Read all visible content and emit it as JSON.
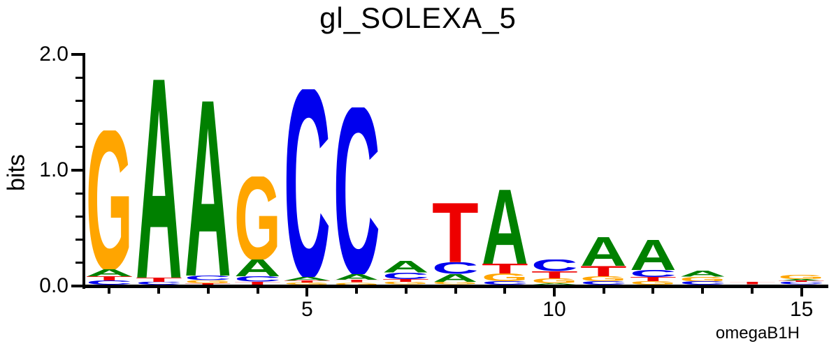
{
  "chart_data": {
    "type": "sequence-logo",
    "title": "gl_SOLEXA_5",
    "ylabel": "bits",
    "attribution": "omegaB1H",
    "ylim": [
      0.0,
      2.0
    ],
    "yticks": [
      {
        "value": 0.0,
        "label": "0.0"
      },
      {
        "value": 1.0,
        "label": "1.0"
      },
      {
        "value": 2.0,
        "label": "2.0"
      }
    ],
    "y_minor_tick_interval": 0.2,
    "x_major_ticks": [
      {
        "position": 5,
        "label": "5"
      },
      {
        "position": 10,
        "label": "10"
      },
      {
        "position": 15,
        "label": "15"
      }
    ],
    "num_positions": 15,
    "colors": {
      "A": "#008000",
      "C": "#0000EE",
      "G": "#FFA500",
      "T": "#EE0000"
    },
    "positions": [
      {
        "pos": 1,
        "stack": [
          {
            "base": "G",
            "bits": 1.2
          },
          {
            "base": "A",
            "bits": 0.06
          },
          {
            "base": "T",
            "bits": 0.035
          },
          {
            "base": "C",
            "bits": 0.035
          }
        ]
      },
      {
        "pos": 2,
        "stack": [
          {
            "base": "A",
            "bits": 1.71
          },
          {
            "base": "T",
            "bits": 0.035
          },
          {
            "base": "C",
            "bits": 0.025
          }
        ]
      },
      {
        "pos": 3,
        "stack": [
          {
            "base": "A",
            "bits": 1.51
          },
          {
            "base": "C",
            "bits": 0.04
          },
          {
            "base": "G",
            "bits": 0.025
          },
          {
            "base": "T",
            "bits": 0.012
          }
        ]
      },
      {
        "pos": 4,
        "stack": [
          {
            "base": "G",
            "bits": 0.72
          },
          {
            "base": "A",
            "bits": 0.145
          },
          {
            "base": "C",
            "bits": 0.045
          },
          {
            "base": "T",
            "bits": 0.025
          }
        ]
      },
      {
        "pos": 5,
        "stack": [
          {
            "base": "C",
            "bits": 1.62
          },
          {
            "base": "A",
            "bits": 0.03
          },
          {
            "base": "T",
            "bits": 0.018
          },
          {
            "base": "G",
            "bits": 0.018
          }
        ]
      },
      {
        "pos": 6,
        "stack": [
          {
            "base": "C",
            "bits": 1.44
          },
          {
            "base": "A",
            "bits": 0.05
          },
          {
            "base": "T",
            "bits": 0.022
          },
          {
            "base": "G",
            "bits": 0.02
          }
        ]
      },
      {
        "pos": 7,
        "stack": [
          {
            "base": "A",
            "bits": 0.1
          },
          {
            "base": "C",
            "bits": 0.055
          },
          {
            "base": "T",
            "bits": 0.028
          },
          {
            "base": "G",
            "bits": 0.022
          }
        ]
      },
      {
        "pos": 8,
        "stack": [
          {
            "base": "T",
            "bits": 0.51
          },
          {
            "base": "C",
            "bits": 0.1
          },
          {
            "base": "A",
            "bits": 0.07
          },
          {
            "base": "G",
            "bits": 0.022
          }
        ]
      },
      {
        "pos": 9,
        "stack": [
          {
            "base": "A",
            "bits": 0.64
          },
          {
            "base": "T",
            "bits": 0.085
          },
          {
            "base": "G",
            "bits": 0.065
          },
          {
            "base": "C",
            "bits": 0.03
          }
        ]
      },
      {
        "pos": 10,
        "stack": [
          {
            "base": "C",
            "bits": 0.1
          },
          {
            "base": "T",
            "bits": 0.06
          },
          {
            "base": "G",
            "bits": 0.042
          },
          {
            "base": "A",
            "bits": 0.012
          }
        ]
      },
      {
        "pos": 11,
        "stack": [
          {
            "base": "A",
            "bits": 0.25
          },
          {
            "base": "T",
            "bits": 0.09
          },
          {
            "base": "G",
            "bits": 0.042
          },
          {
            "base": "C",
            "bits": 0.03
          }
        ]
      },
      {
        "pos": 12,
        "stack": [
          {
            "base": "A",
            "bits": 0.26
          },
          {
            "base": "C",
            "bits": 0.06
          },
          {
            "base": "T",
            "bits": 0.035
          },
          {
            "base": "G",
            "bits": 0.03
          }
        ]
      },
      {
        "pos": 13,
        "stack": [
          {
            "base": "A",
            "bits": 0.05
          },
          {
            "base": "G",
            "bits": 0.038
          },
          {
            "base": "C",
            "bits": 0.03
          }
        ]
      },
      {
        "pos": 14,
        "stack": [
          {
            "base": "T",
            "bits": 0.022
          }
        ]
      },
      {
        "pos": 15,
        "stack": [
          {
            "base": "G",
            "bits": 0.035
          },
          {
            "base": "A",
            "bits": 0.014
          },
          {
            "base": "T",
            "bits": 0.012
          },
          {
            "base": "C",
            "bits": 0.022
          }
        ]
      }
    ]
  }
}
